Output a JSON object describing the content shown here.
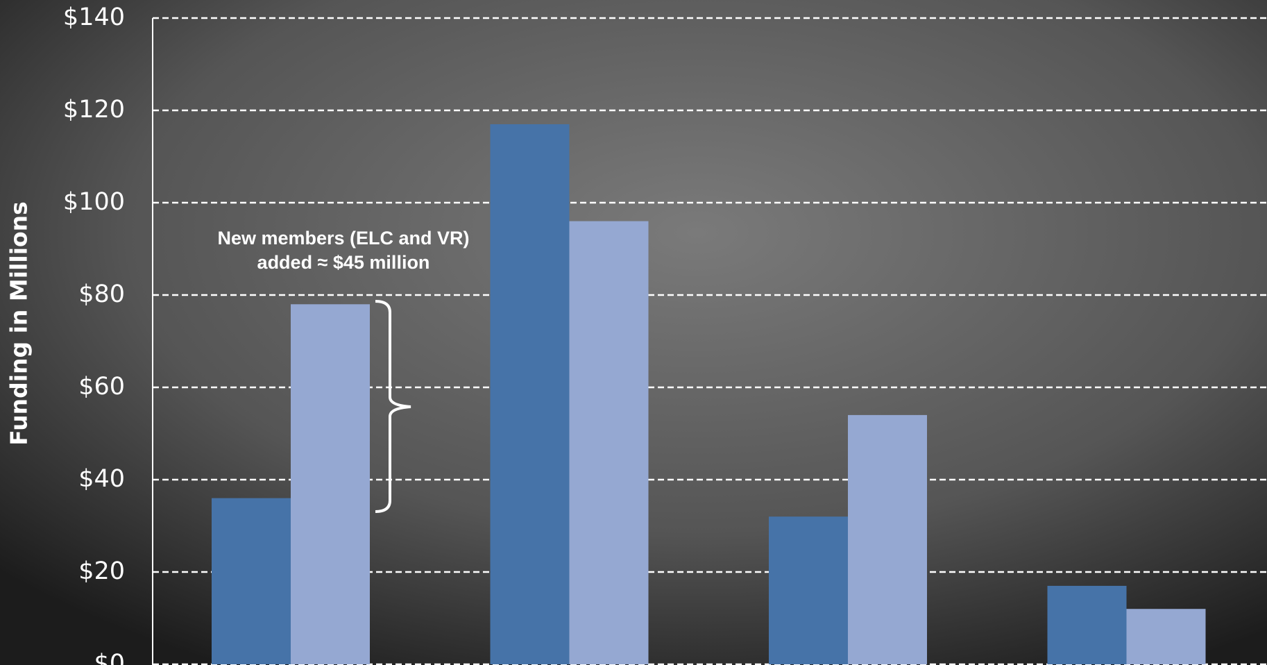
{
  "chart_data": {
    "type": "bar",
    "y_axis_label": "Funding in Millions",
    "annotation": "New members (ELC and VR) added ≈ $45 million",
    "categories": [
      null,
      null,
      null,
      null
    ],
    "series": [
      {
        "color": "#4673a8",
        "values": [
          36,
          117,
          32,
          17
        ]
      },
      {
        "color": "#95a8d2",
        "values": [
          78,
          96,
          54,
          12
        ]
      }
    ],
    "ylim": [
      0,
      140
    ],
    "yticks": [
      {
        "value": 0,
        "label": "$0"
      },
      {
        "value": 20,
        "label": "$20"
      },
      {
        "value": 40,
        "label": "$40"
      },
      {
        "value": 60,
        "label": "$60"
      },
      {
        "value": 80,
        "label": "$80"
      },
      {
        "value": 100,
        "label": "$100"
      },
      {
        "value": 120,
        "label": "$120"
      },
      {
        "value": 140,
        "label": "$140"
      }
    ],
    "grid": true
  }
}
